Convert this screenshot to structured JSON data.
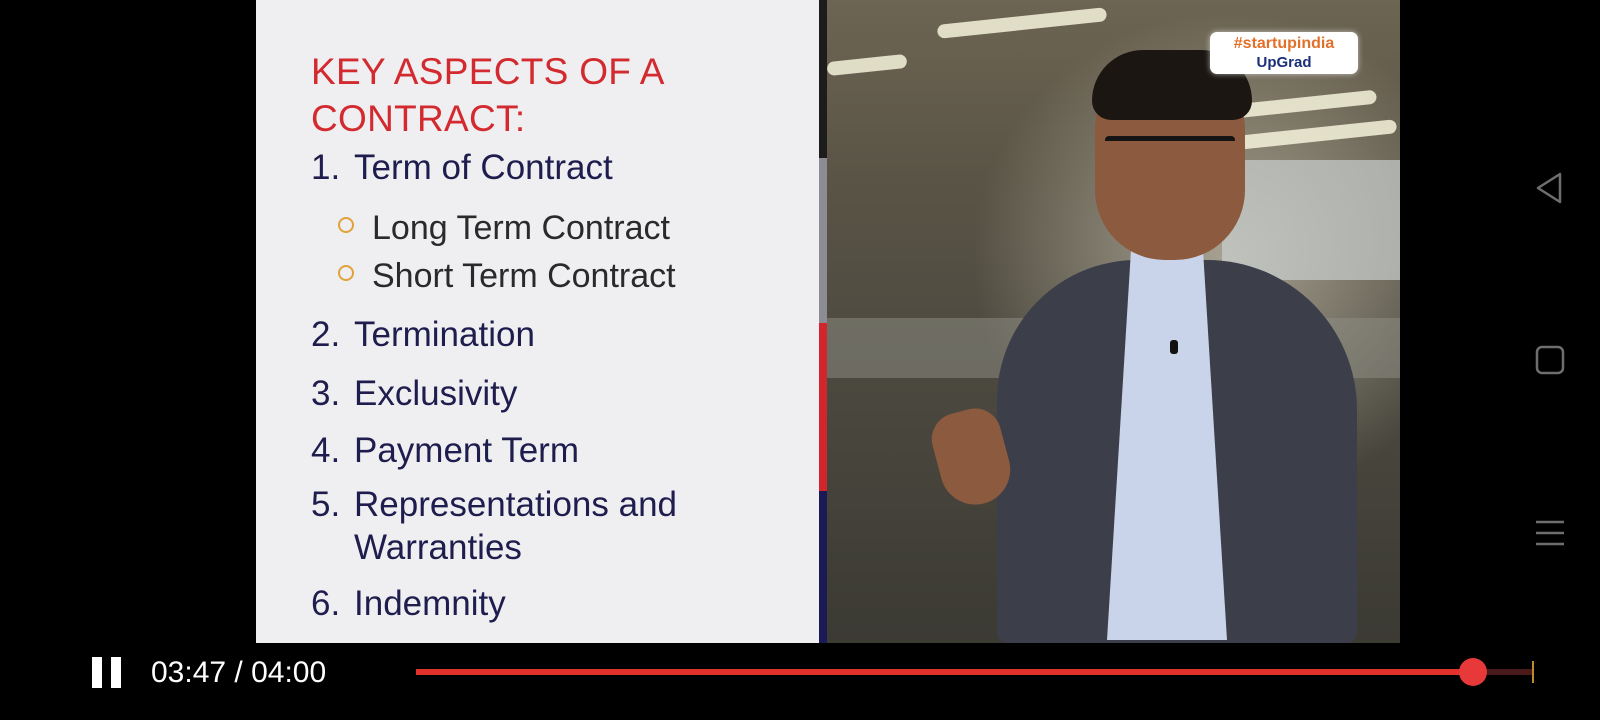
{
  "slide": {
    "title_line1": "KEY ASPECTS OF A",
    "title_line2": "CONTRACT:",
    "items": [
      {
        "num": "1.",
        "text": "Term of Contract"
      },
      {
        "num": "2.",
        "text": "Termination"
      },
      {
        "num": "3.",
        "text": "Exclusivity"
      },
      {
        "num": "4.",
        "text": "Payment Term"
      },
      {
        "num": "5.",
        "text": "Representations and Warranties"
      },
      {
        "num": "6.",
        "text": "Indemnity"
      }
    ],
    "subitems": [
      "Long Term Contract",
      "Short Term Contract"
    ]
  },
  "watermark": {
    "line1": "#startupindia",
    "line2": "UpGrad"
  },
  "player": {
    "time_text": "03:47 / 04:00",
    "progress_fraction": 0.9458,
    "play_state_icon": "pause-icon"
  },
  "system_nav": {
    "icons": [
      "back-icon",
      "home-icon",
      "menu-icon"
    ]
  },
  "colors": {
    "title_red": "#d32a2f",
    "item_navy": "#1e1d4e",
    "bullet_gold": "#e0a23a",
    "seek_red": "#e2322b"
  }
}
